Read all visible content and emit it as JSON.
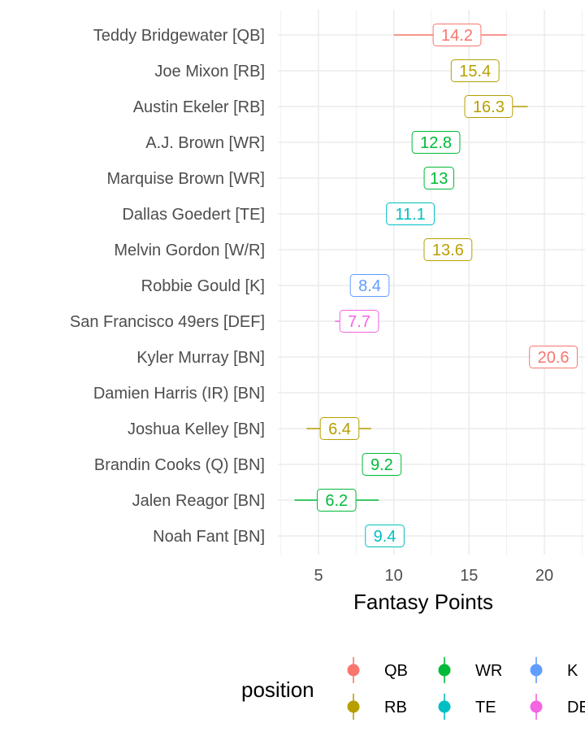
{
  "chart_data": {
    "type": "scatter",
    "title": "",
    "xlabel": "Fantasy Points",
    "ylabel": "",
    "xlim": [
      2.3,
      22.7
    ],
    "xticks": [
      5,
      10,
      15,
      20
    ],
    "grid": true,
    "legend": {
      "title": "position",
      "placement": "bottom",
      "entries": [
        {
          "label": "QB",
          "color": "#F8766D"
        },
        {
          "label": "RB",
          "color": "#B79F00"
        },
        {
          "label": "WR",
          "color": "#00BA38"
        },
        {
          "label": "TE",
          "color": "#00BFC4"
        },
        {
          "label": "K",
          "color": "#619CFF"
        },
        {
          "label": "DEF",
          "color": "#F564E3"
        }
      ]
    },
    "players": [
      {
        "name": "Teddy Bridgewater [QB]",
        "position": "QB",
        "value": 14.2,
        "label": "14.2",
        "low": 10.0,
        "high": 17.5
      },
      {
        "name": "Joe Mixon [RB]",
        "position": "RB",
        "value": 15.4,
        "label": "15.4",
        "low": null,
        "high": null
      },
      {
        "name": "Austin Ekeler [RB]",
        "position": "RB",
        "value": 16.3,
        "label": "16.3",
        "low": 15.0,
        "high": 18.9
      },
      {
        "name": "A.J. Brown [WR]",
        "position": "WR",
        "value": 12.8,
        "label": "12.8",
        "low": null,
        "high": null
      },
      {
        "name": "Marquise Brown [WR]",
        "position": "WR",
        "value": 13.0,
        "label": "13",
        "low": null,
        "high": null
      },
      {
        "name": "Dallas Goedert [TE]",
        "position": "TE",
        "value": 11.1,
        "label": "11.1",
        "low": null,
        "high": null
      },
      {
        "name": "Melvin Gordon [W/R]",
        "position": "RB",
        "value": 13.6,
        "label": "13.6",
        "low": null,
        "high": null
      },
      {
        "name": "Robbie Gould [K]",
        "position": "K",
        "value": 8.4,
        "label": "8.4",
        "low": null,
        "high": null
      },
      {
        "name": "San Francisco 49ers [DEF]",
        "position": "DEF",
        "value": 7.7,
        "label": "7.7",
        "low": 6.1,
        "high": null
      },
      {
        "name": "Kyler Murray [BN]",
        "position": "QB",
        "value": 20.6,
        "label": "20.6",
        "low": null,
        "high": null
      },
      {
        "name": "Damien Harris (IR) [BN]",
        "position": null,
        "value": null,
        "label": null,
        "low": null,
        "high": null
      },
      {
        "name": "Joshua Kelley [BN]",
        "position": "RB",
        "value": 6.4,
        "label": "6.4",
        "low": 4.2,
        "high": 8.5
      },
      {
        "name": "Brandin Cooks (Q) [BN]",
        "position": "WR",
        "value": 9.2,
        "label": "9.2",
        "low": null,
        "high": null
      },
      {
        "name": "Jalen Reagor [BN]",
        "position": "WR",
        "value": 6.2,
        "label": "6.2",
        "low": 3.4,
        "high": 9.0
      },
      {
        "name": "Noah Fant [BN]",
        "position": "TE",
        "value": 9.4,
        "label": "9.4",
        "low": null,
        "high": null
      }
    ]
  }
}
